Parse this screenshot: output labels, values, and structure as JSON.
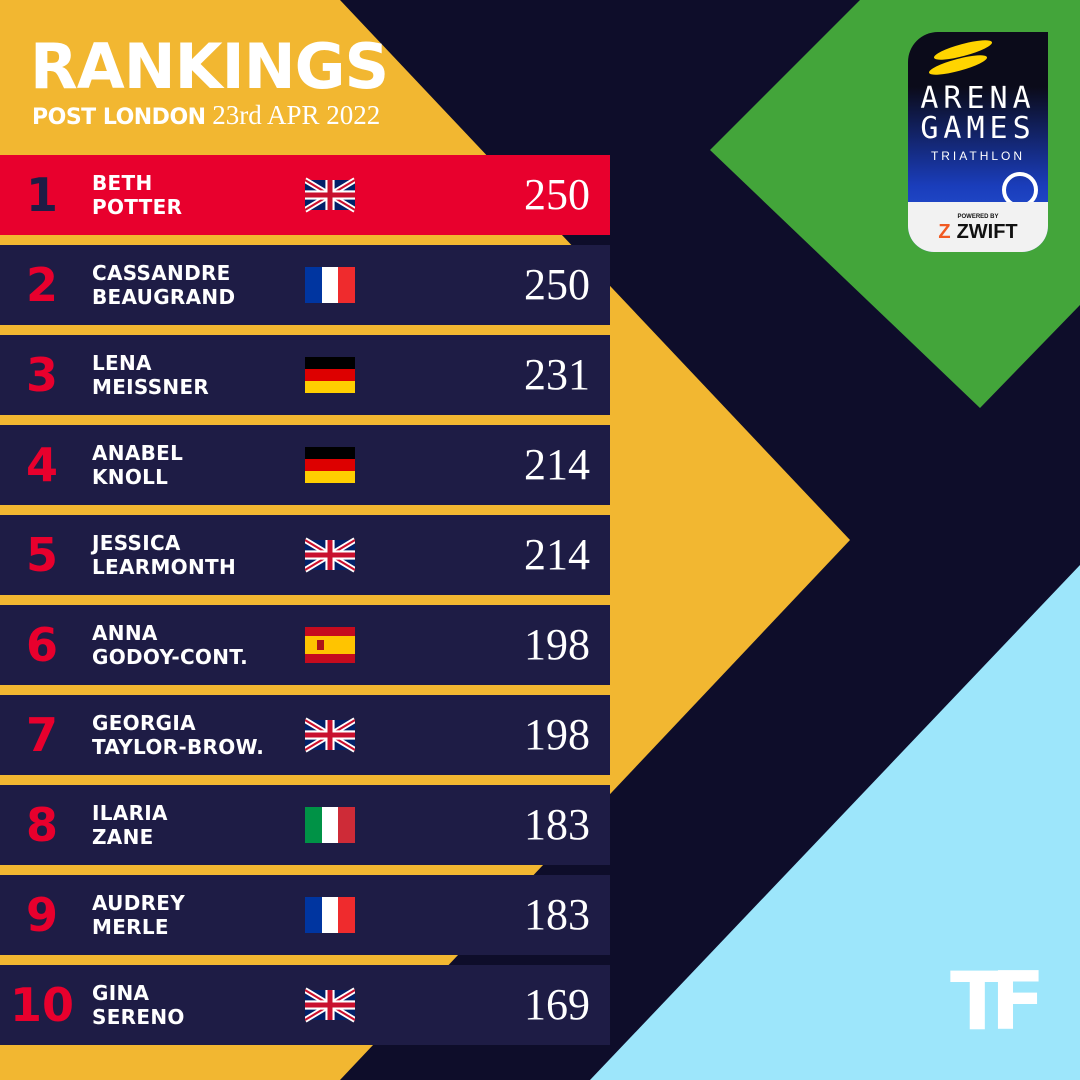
{
  "header": {
    "title": "RANKINGS",
    "subtitle_bold": "POST LONDON",
    "subtitle_date": "23rd APR 2022"
  },
  "colors": {
    "background": "#0e0d2a",
    "yellow": "#f2b731",
    "green": "#43a53a",
    "light_blue": "#9de6fb",
    "row": "#1e1c45",
    "leader_row": "#e8002d",
    "rank_red": "#e8002d"
  },
  "rankings": [
    {
      "rank": "1",
      "first": "BETH",
      "last": "POTTER",
      "flag": "gb",
      "points": "250"
    },
    {
      "rank": "2",
      "first": "CASSANDRE",
      "last": "BEAUGRAND",
      "flag": "fr",
      "points": "250"
    },
    {
      "rank": "3",
      "first": "LENA",
      "last": "MEISSNER",
      "flag": "de",
      "points": "231"
    },
    {
      "rank": "4",
      "first": "ANABEL",
      "last": "KNOLL",
      "flag": "de",
      "points": "214"
    },
    {
      "rank": "5",
      "first": "JESSICA",
      "last": "LEARMONTH",
      "flag": "gb",
      "points": "214"
    },
    {
      "rank": "6",
      "first": "ANNA",
      "last": "GODOY-CONT.",
      "flag": "es",
      "points": "198"
    },
    {
      "rank": "7",
      "first": "GEORGIA",
      "last": "TAYLOR-BROW.",
      "flag": "gb",
      "points": "198"
    },
    {
      "rank": "8",
      "first": "ILARIA",
      "last": "ZANE",
      "flag": "it",
      "points": "183"
    },
    {
      "rank": "9",
      "first": "AUDREY",
      "last": "MERLE",
      "flag": "fr",
      "points": "183"
    },
    {
      "rank": "10",
      "first": "GINA",
      "last": "SERENO",
      "flag": "gb",
      "points": "169"
    }
  ],
  "logo": {
    "line1": "ARENA",
    "line2": "GAMES",
    "line3": "TRIATHLON",
    "powered": "POWERED BY",
    "sponsor": "ZWIFT"
  },
  "corner_logo": "TF"
}
